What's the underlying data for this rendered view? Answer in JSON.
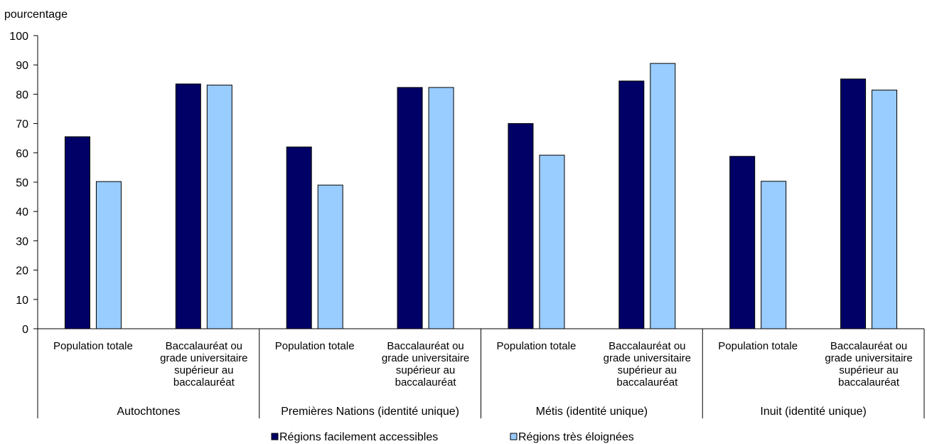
{
  "chart_data": {
    "type": "bar",
    "ylabel": "pourcentage",
    "ylim": [
      0,
      100
    ],
    "yticks": [
      0,
      10,
      20,
      30,
      40,
      50,
      60,
      70,
      80,
      90,
      100
    ],
    "grid": false,
    "legend_position": "bottom",
    "groups": [
      {
        "label": "Autochtones",
        "categories": [
          "Population totale",
          "Baccalauréat ou grade universitaire supérieur au baccalauréat"
        ],
        "label_lines": [
          [
            "Population totale"
          ],
          [
            "Baccalauréat ou",
            "grade universitaire",
            "supérieur au",
            "baccalauréat"
          ]
        ]
      },
      {
        "label": "Premières Nations (identité unique)",
        "categories": [
          "Population totale",
          "Baccalauréat ou grade universitaire supérieur au baccalauréat"
        ],
        "label_lines": [
          [
            "Population totale"
          ],
          [
            "Baccalauréat ou",
            "grade universitaire",
            "supérieur au",
            "baccalauréat"
          ]
        ]
      },
      {
        "label": "Métis (identité unique)",
        "categories": [
          "Population totale",
          "Baccalauréat ou grade universitaire supérieur au baccalauréat"
        ],
        "label_lines": [
          [
            "Population totale"
          ],
          [
            "Baccalauréat ou",
            "grade universitaire",
            "supérieur au",
            "baccalauréat"
          ]
        ]
      },
      {
        "label": "Inuit (identité unique)",
        "categories": [
          "Population totale",
          "Baccalauréat ou grade universitaire supérieur au baccalauréat"
        ],
        "label_lines": [
          [
            "Population totale"
          ],
          [
            "Baccalauréat ou",
            "grade universitaire",
            "supérieur au",
            "baccalauréat"
          ]
        ]
      }
    ],
    "series": [
      {
        "name": "Régions facilement accessibles",
        "color": "#000066",
        "values": [
          65.5,
          83.5,
          62.0,
          82.3,
          70.0,
          84.5,
          58.8,
          85.2
        ]
      },
      {
        "name": "Régions très éloignées",
        "color": "#99ccff",
        "values": [
          50.2,
          83.1,
          49.0,
          82.3,
          59.2,
          90.5,
          50.3,
          81.4
        ]
      }
    ]
  }
}
